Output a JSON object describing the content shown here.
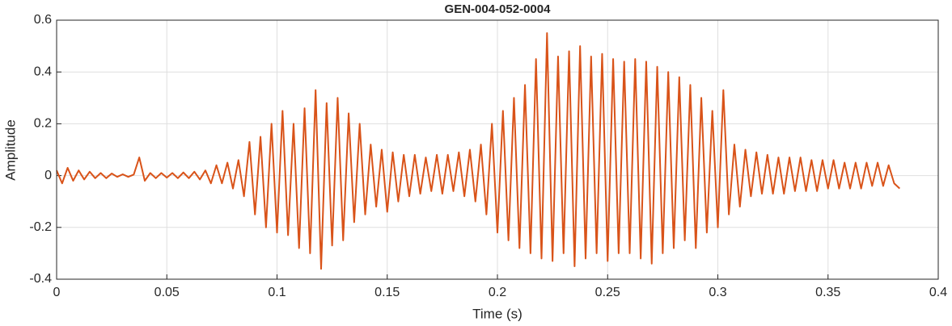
{
  "chart_data": {
    "type": "line",
    "title": "GEN-004-052-0004",
    "x_label": "Time (s)",
    "y_label": "Amplitude",
    "xlim": [
      0,
      0.4
    ],
    "ylim": [
      -0.4,
      0.6
    ],
    "xticks": [
      0,
      0.05,
      0.1,
      0.15,
      0.2,
      0.25,
      0.3,
      0.35,
      0.4
    ],
    "yticks": [
      -0.4,
      -0.2,
      0,
      0.2,
      0.4,
      0.6
    ],
    "grid": true,
    "x": [
      0,
      0.0025,
      0.005,
      0.0075,
      0.01,
      0.0125,
      0.015,
      0.0175,
      0.02,
      0.0225,
      0.025,
      0.0275,
      0.03,
      0.0325,
      0.035,
      0.0375,
      0.04,
      0.0425,
      0.045,
      0.0475,
      0.05,
      0.0525,
      0.055,
      0.0575,
      0.06,
      0.0625,
      0.065,
      0.0675,
      0.07,
      0.0725,
      0.075,
      0.0775,
      0.08,
      0.0825,
      0.085,
      0.0875,
      0.09,
      0.0925,
      0.095,
      0.0975,
      0.1,
      0.1025,
      0.105,
      0.1075,
      0.11,
      0.1125,
      0.115,
      0.1175,
      0.12,
      0.1225,
      0.125,
      0.1275,
      0.13,
      0.1325,
      0.135,
      0.1375,
      0.14,
      0.1425,
      0.145,
      0.1475,
      0.15,
      0.1525,
      0.155,
      0.1575,
      0.16,
      0.1625,
      0.165,
      0.1675,
      0.17,
      0.1725,
      0.175,
      0.1775,
      0.18,
      0.1825,
      0.185,
      0.1875,
      0.19,
      0.1925,
      0.195,
      0.1975,
      0.2,
      0.2025,
      0.205,
      0.2075,
      0.21,
      0.2125,
      0.215,
      0.2175,
      0.22,
      0.2225,
      0.225,
      0.2275,
      0.23,
      0.2325,
      0.235,
      0.2375,
      0.24,
      0.2425,
      0.245,
      0.2475,
      0.25,
      0.2525,
      0.255,
      0.2575,
      0.26,
      0.2625,
      0.265,
      0.2675,
      0.27,
      0.2725,
      0.275,
      0.2775,
      0.28,
      0.2825,
      0.285,
      0.2875,
      0.29,
      0.2925,
      0.295,
      0.2975,
      0.3,
      0.3025,
      0.305,
      0.3075,
      0.31,
      0.3125,
      0.315,
      0.3175,
      0.32,
      0.3225,
      0.325,
      0.3275,
      0.33,
      0.3325,
      0.335,
      0.3375,
      0.34,
      0.3425,
      0.345,
      0.3475,
      0.35,
      0.3525,
      0.355,
      0.3575,
      0.36,
      0.3625,
      0.365,
      0.3675,
      0.37,
      0.3725,
      0.375,
      0.3775,
      0.38,
      0.3825
    ],
    "series": [
      {
        "color": "#d95319",
        "values": [
          0.02,
          -0.03,
          0.03,
          -0.02,
          0.02,
          -0.015,
          0.015,
          -0.01,
          0.01,
          -0.01,
          0.008,
          -0.005,
          0.005,
          -0.005,
          0.004,
          0.07,
          -0.02,
          0.01,
          -0.01,
          0.01,
          -0.008,
          0.01,
          -0.01,
          0.012,
          -0.01,
          0.015,
          -0.015,
          0.02,
          -0.03,
          0.04,
          -0.03,
          0.05,
          -0.05,
          0.06,
          -0.08,
          0.13,
          -0.15,
          0.15,
          -0.2,
          0.2,
          -0.22,
          0.25,
          -0.23,
          0.2,
          -0.28,
          0.26,
          -0.3,
          0.33,
          -0.36,
          0.28,
          -0.27,
          0.3,
          -0.25,
          0.24,
          -0.18,
          0.2,
          -0.15,
          0.12,
          -0.12,
          0.1,
          -0.14,
          0.09,
          -0.1,
          0.08,
          -0.08,
          0.08,
          -0.07,
          0.07,
          -0.06,
          0.08,
          -0.07,
          0.08,
          -0.06,
          0.09,
          -0.08,
          0.1,
          -0.1,
          0.12,
          -0.15,
          0.2,
          -0.22,
          0.25,
          -0.25,
          0.3,
          -0.28,
          0.35,
          -0.3,
          0.45,
          -0.32,
          0.55,
          -0.33,
          0.46,
          -0.3,
          0.48,
          -0.35,
          0.5,
          -0.32,
          0.46,
          -0.3,
          0.47,
          -0.33,
          0.45,
          -0.3,
          0.44,
          -0.3,
          0.45,
          -0.32,
          0.44,
          -0.34,
          0.42,
          -0.3,
          0.4,
          -0.28,
          0.38,
          -0.25,
          0.35,
          -0.28,
          0.3,
          -0.22,
          0.25,
          -0.2,
          0.33,
          -0.15,
          0.12,
          -0.12,
          0.1,
          -0.08,
          0.09,
          -0.07,
          0.08,
          -0.07,
          0.07,
          -0.07,
          0.07,
          -0.06,
          0.07,
          -0.06,
          0.06,
          -0.06,
          0.06,
          -0.05,
          0.06,
          -0.05,
          0.05,
          -0.05,
          0.05,
          -0.05,
          0.05,
          -0.04,
          0.05,
          -0.04,
          0.04,
          -0.03,
          -0.05
        ]
      }
    ]
  }
}
